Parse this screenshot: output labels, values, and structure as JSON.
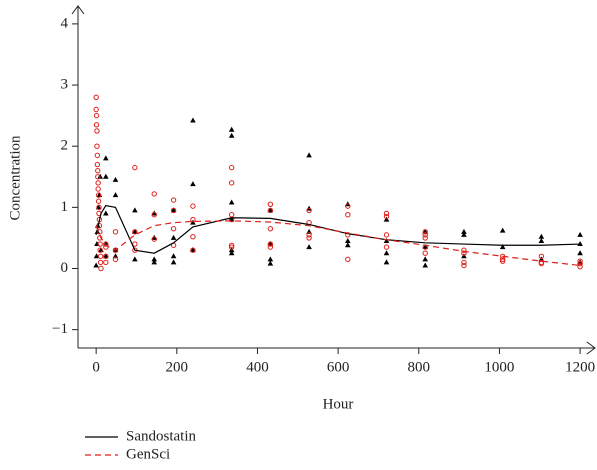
{
  "chart_data": {
    "type": "scatter",
    "x_label": "Hour",
    "y_label": "Concentration",
    "xlim": [
      -45,
      1232
    ],
    "ylim": [
      -1.3,
      4.26
    ],
    "xticks": [
      0,
      200,
      400,
      600,
      800,
      1000,
      1200
    ],
    "yticks": [
      {
        "value": -1,
        "label": "−1"
      },
      0,
      1,
      2,
      3,
      4
    ],
    "series": [
      {
        "name": "Sandostatin",
        "color": "#000000",
        "marker": "triangle",
        "line_style": "solid",
        "points": {
          "x": [
            0,
            1,
            2,
            3,
            4,
            6,
            8,
            10,
            12,
            24,
            24,
            24,
            24,
            24,
            48,
            48,
            48,
            48,
            96,
            96,
            96,
            144,
            144,
            144,
            144,
            192,
            192,
            192,
            192,
            240,
            240,
            240,
            240,
            336,
            336,
            336,
            336,
            336,
            336,
            432,
            432,
            432,
            432,
            528,
            528,
            528,
            528,
            624,
            624,
            624,
            720,
            720,
            720,
            720,
            816,
            816,
            816,
            816,
            912,
            912,
            912,
            1008,
            1008,
            1104,
            1104,
            1104,
            1200,
            1200,
            1200,
            1200
          ],
          "values": [
            0.05,
            0.2,
            0.4,
            0.6,
            0.7,
            1.0,
            1.2,
            1.5,
            0.3,
            1.8,
            1.5,
            0.9,
            0.4,
            0.2,
            1.45,
            1.2,
            0.3,
            0.2,
            0.95,
            0.6,
            0.15,
            0.9,
            0.5,
            0.15,
            0.1,
            0.95,
            0.5,
            0.2,
            0.1,
            2.42,
            1.38,
            0.75,
            0.3,
            2.27,
            2.17,
            1.08,
            0.8,
            0.3,
            0.25,
            0.95,
            0.4,
            0.15,
            0.08,
            1.85,
            0.98,
            0.6,
            0.35,
            1.05,
            0.45,
            0.38,
            0.8,
            0.45,
            0.25,
            0.1,
            0.6,
            0.35,
            0.15,
            0.05,
            0.6,
            0.55,
            0.2,
            0.62,
            0.35,
            0.52,
            0.45,
            0.15,
            0.55,
            0.4,
            0.25,
            0.1
          ]
        },
        "curve": {
          "x": [
            0,
            12,
            24,
            48,
            96,
            144,
            192,
            240,
            336,
            432,
            528,
            624,
            720,
            816,
            912,
            1008,
            1104,
            1200
          ],
          "values": [
            0.55,
            0.9,
            1.03,
            1.0,
            0.3,
            0.25,
            0.42,
            0.68,
            0.83,
            0.82,
            0.72,
            0.57,
            0.47,
            0.42,
            0.4,
            0.38,
            0.38,
            0.4
          ]
        }
      },
      {
        "name": "GenSci",
        "color": "#e0201b",
        "marker": "circle",
        "line_style": "dashed",
        "points": {
          "x": [
            0,
            0,
            1,
            1,
            2,
            2,
            3,
            3,
            4,
            4,
            5,
            5,
            6,
            6,
            7,
            7,
            8,
            8,
            9,
            9,
            10,
            10,
            11,
            11,
            12,
            24,
            24,
            24,
            24,
            48,
            48,
            48,
            96,
            96,
            96,
            96,
            144,
            144,
            144,
            192,
            192,
            192,
            192,
            240,
            240,
            240,
            240,
            336,
            336,
            336,
            336,
            336,
            336,
            432,
            432,
            432,
            432,
            432,
            528,
            528,
            528,
            528,
            624,
            624,
            624,
            624,
            720,
            720,
            720,
            720,
            816,
            816,
            816,
            816,
            816,
            912,
            912,
            912,
            912,
            1008,
            1008,
            1008,
            1104,
            1104,
            1104,
            1200,
            1200,
            1200
          ],
          "values": [
            2.8,
            2.6,
            2.5,
            2.35,
            2.25,
            2.0,
            1.85,
            1.7,
            1.6,
            1.5,
            1.4,
            1.3,
            1.2,
            1.1,
            1.0,
            0.9,
            0.8,
            0.7,
            0.6,
            0.5,
            0.4,
            0.3,
            0.2,
            0.1,
            0.0,
            0.4,
            0.35,
            0.2,
            0.1,
            0.6,
            0.3,
            0.15,
            1.65,
            0.6,
            0.3,
            0.4,
            1.22,
            0.88,
            0.48,
            1.12,
            0.95,
            0.65,
            0.38,
            1.02,
            0.8,
            0.52,
            0.3,
            1.65,
            1.4,
            0.88,
            0.8,
            0.38,
            0.35,
            1.05,
            0.95,
            0.65,
            0.4,
            0.35,
            0.95,
            0.75,
            0.55,
            0.5,
            1.02,
            0.88,
            0.55,
            0.15,
            0.9,
            0.85,
            0.55,
            0.35,
            0.6,
            0.55,
            0.5,
            0.35,
            0.25,
            0.3,
            0.25,
            0.1,
            0.05,
            0.2,
            0.15,
            0.12,
            0.2,
            0.1,
            0.08,
            0.12,
            0.08,
            0.03
          ]
        },
        "curve": {
          "x": [
            0,
            12,
            24,
            48,
            96,
            144,
            192,
            240,
            336,
            432,
            528,
            624,
            720,
            816,
            912,
            1008,
            1104,
            1200
          ],
          "values": [
            0.7,
            0.5,
            0.38,
            0.3,
            0.55,
            0.7,
            0.75,
            0.77,
            0.78,
            0.76,
            0.7,
            0.58,
            0.47,
            0.38,
            0.28,
            0.2,
            0.12,
            0.05
          ]
        }
      }
    ]
  }
}
